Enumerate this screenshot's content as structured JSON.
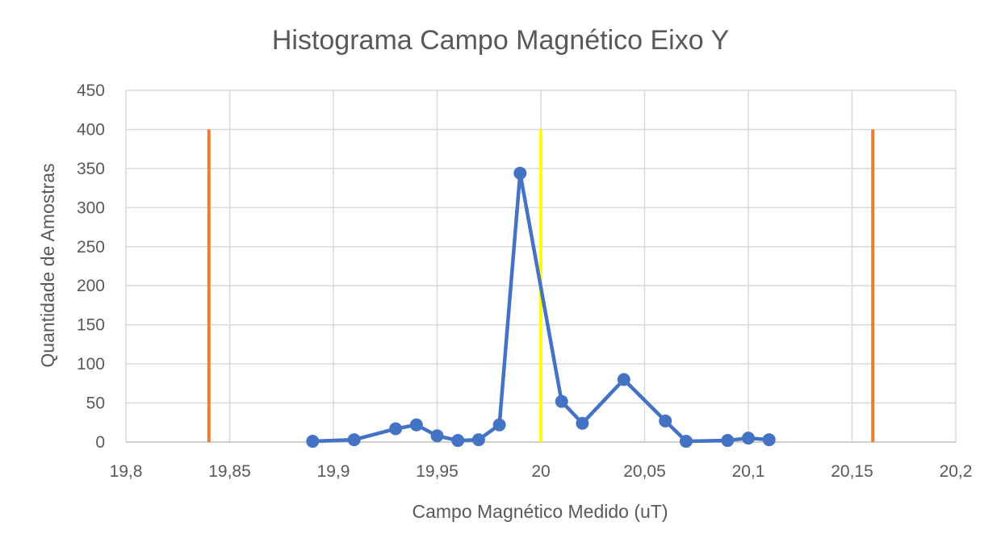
{
  "chart_data": {
    "type": "line",
    "title": "Histograma Campo Magnético Eixo Y",
    "xlabel": "Campo Magnético Medido (uT)",
    "ylabel": "Quantidade de Amostras",
    "xlim": [
      19.8,
      20.2
    ],
    "ylim": [
      0,
      450
    ],
    "x_ticks": [
      19.8,
      19.85,
      19.9,
      19.95,
      20.0,
      20.05,
      20.1,
      20.15,
      20.2
    ],
    "x_tick_labels": [
      "19,8",
      "19,85",
      "19,9",
      "19,95",
      "20",
      "20,05",
      "20,1",
      "20,15",
      "20,2"
    ],
    "y_ticks": [
      0,
      50,
      100,
      150,
      200,
      250,
      300,
      350,
      400,
      450
    ],
    "y_tick_labels": [
      "0",
      "50",
      "100",
      "150",
      "200",
      "250",
      "300",
      "350",
      "400",
      "450"
    ],
    "grid": true,
    "legend": false,
    "series": [
      {
        "color": "#4472c4",
        "marker": "circle",
        "x": [
          19.89,
          19.91,
          19.93,
          19.94,
          19.95,
          19.96,
          19.97,
          19.98,
          19.99,
          20.01,
          20.02,
          20.04,
          20.06,
          20.07,
          20.09,
          20.1,
          20.11
        ],
        "y": [
          1,
          3,
          17,
          22,
          8,
          2,
          3,
          22,
          344,
          52,
          24,
          80,
          27,
          1,
          2,
          5,
          3
        ]
      }
    ],
    "vertical_lines": [
      {
        "x": 19.84,
        "y_range": [
          0,
          400
        ],
        "color": "#ed7d31"
      },
      {
        "x": 20.0,
        "y_range": [
          0,
          400
        ],
        "color": "#ffff00"
      },
      {
        "x": 20.16,
        "y_range": [
          0,
          400
        ],
        "color": "#ed7d31"
      }
    ]
  }
}
